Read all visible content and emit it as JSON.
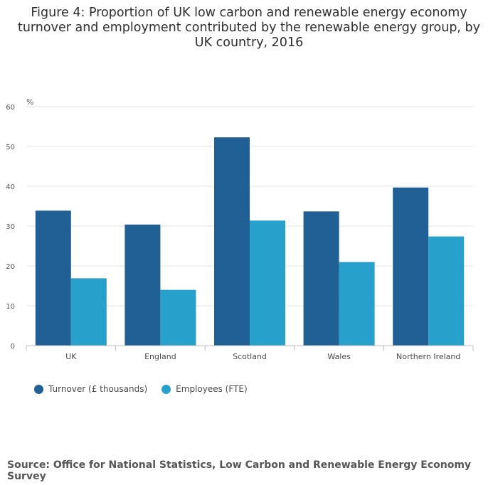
{
  "chart_data": {
    "type": "bar",
    "title": "Figure 4: Proportion of UK low carbon and renewable energy economy turnover and employment contributed by the renewable energy group, by UK country, 2016",
    "ylabel": "%",
    "xlabel": "",
    "ylim": [
      0,
      60
    ],
    "yticks": [
      0,
      10,
      20,
      30,
      40,
      50,
      60
    ],
    "grid": true,
    "categories": [
      "UK",
      "England",
      "Scotland",
      "Wales",
      "Northern Ireland"
    ],
    "series": [
      {
        "name": "Turnover (£ thousands)",
        "color": "#206095",
        "values": [
          33.9,
          30.4,
          52.3,
          33.7,
          39.7
        ]
      },
      {
        "name": "Employees (FTE)",
        "color": "#27a0cc",
        "values": [
          16.9,
          14.0,
          31.4,
          21.0,
          27.4
        ]
      }
    ],
    "legend_position": "bottom-left"
  },
  "source": "Source: Office for National Statistics, Low Carbon and Renewable Energy Economy Survey"
}
